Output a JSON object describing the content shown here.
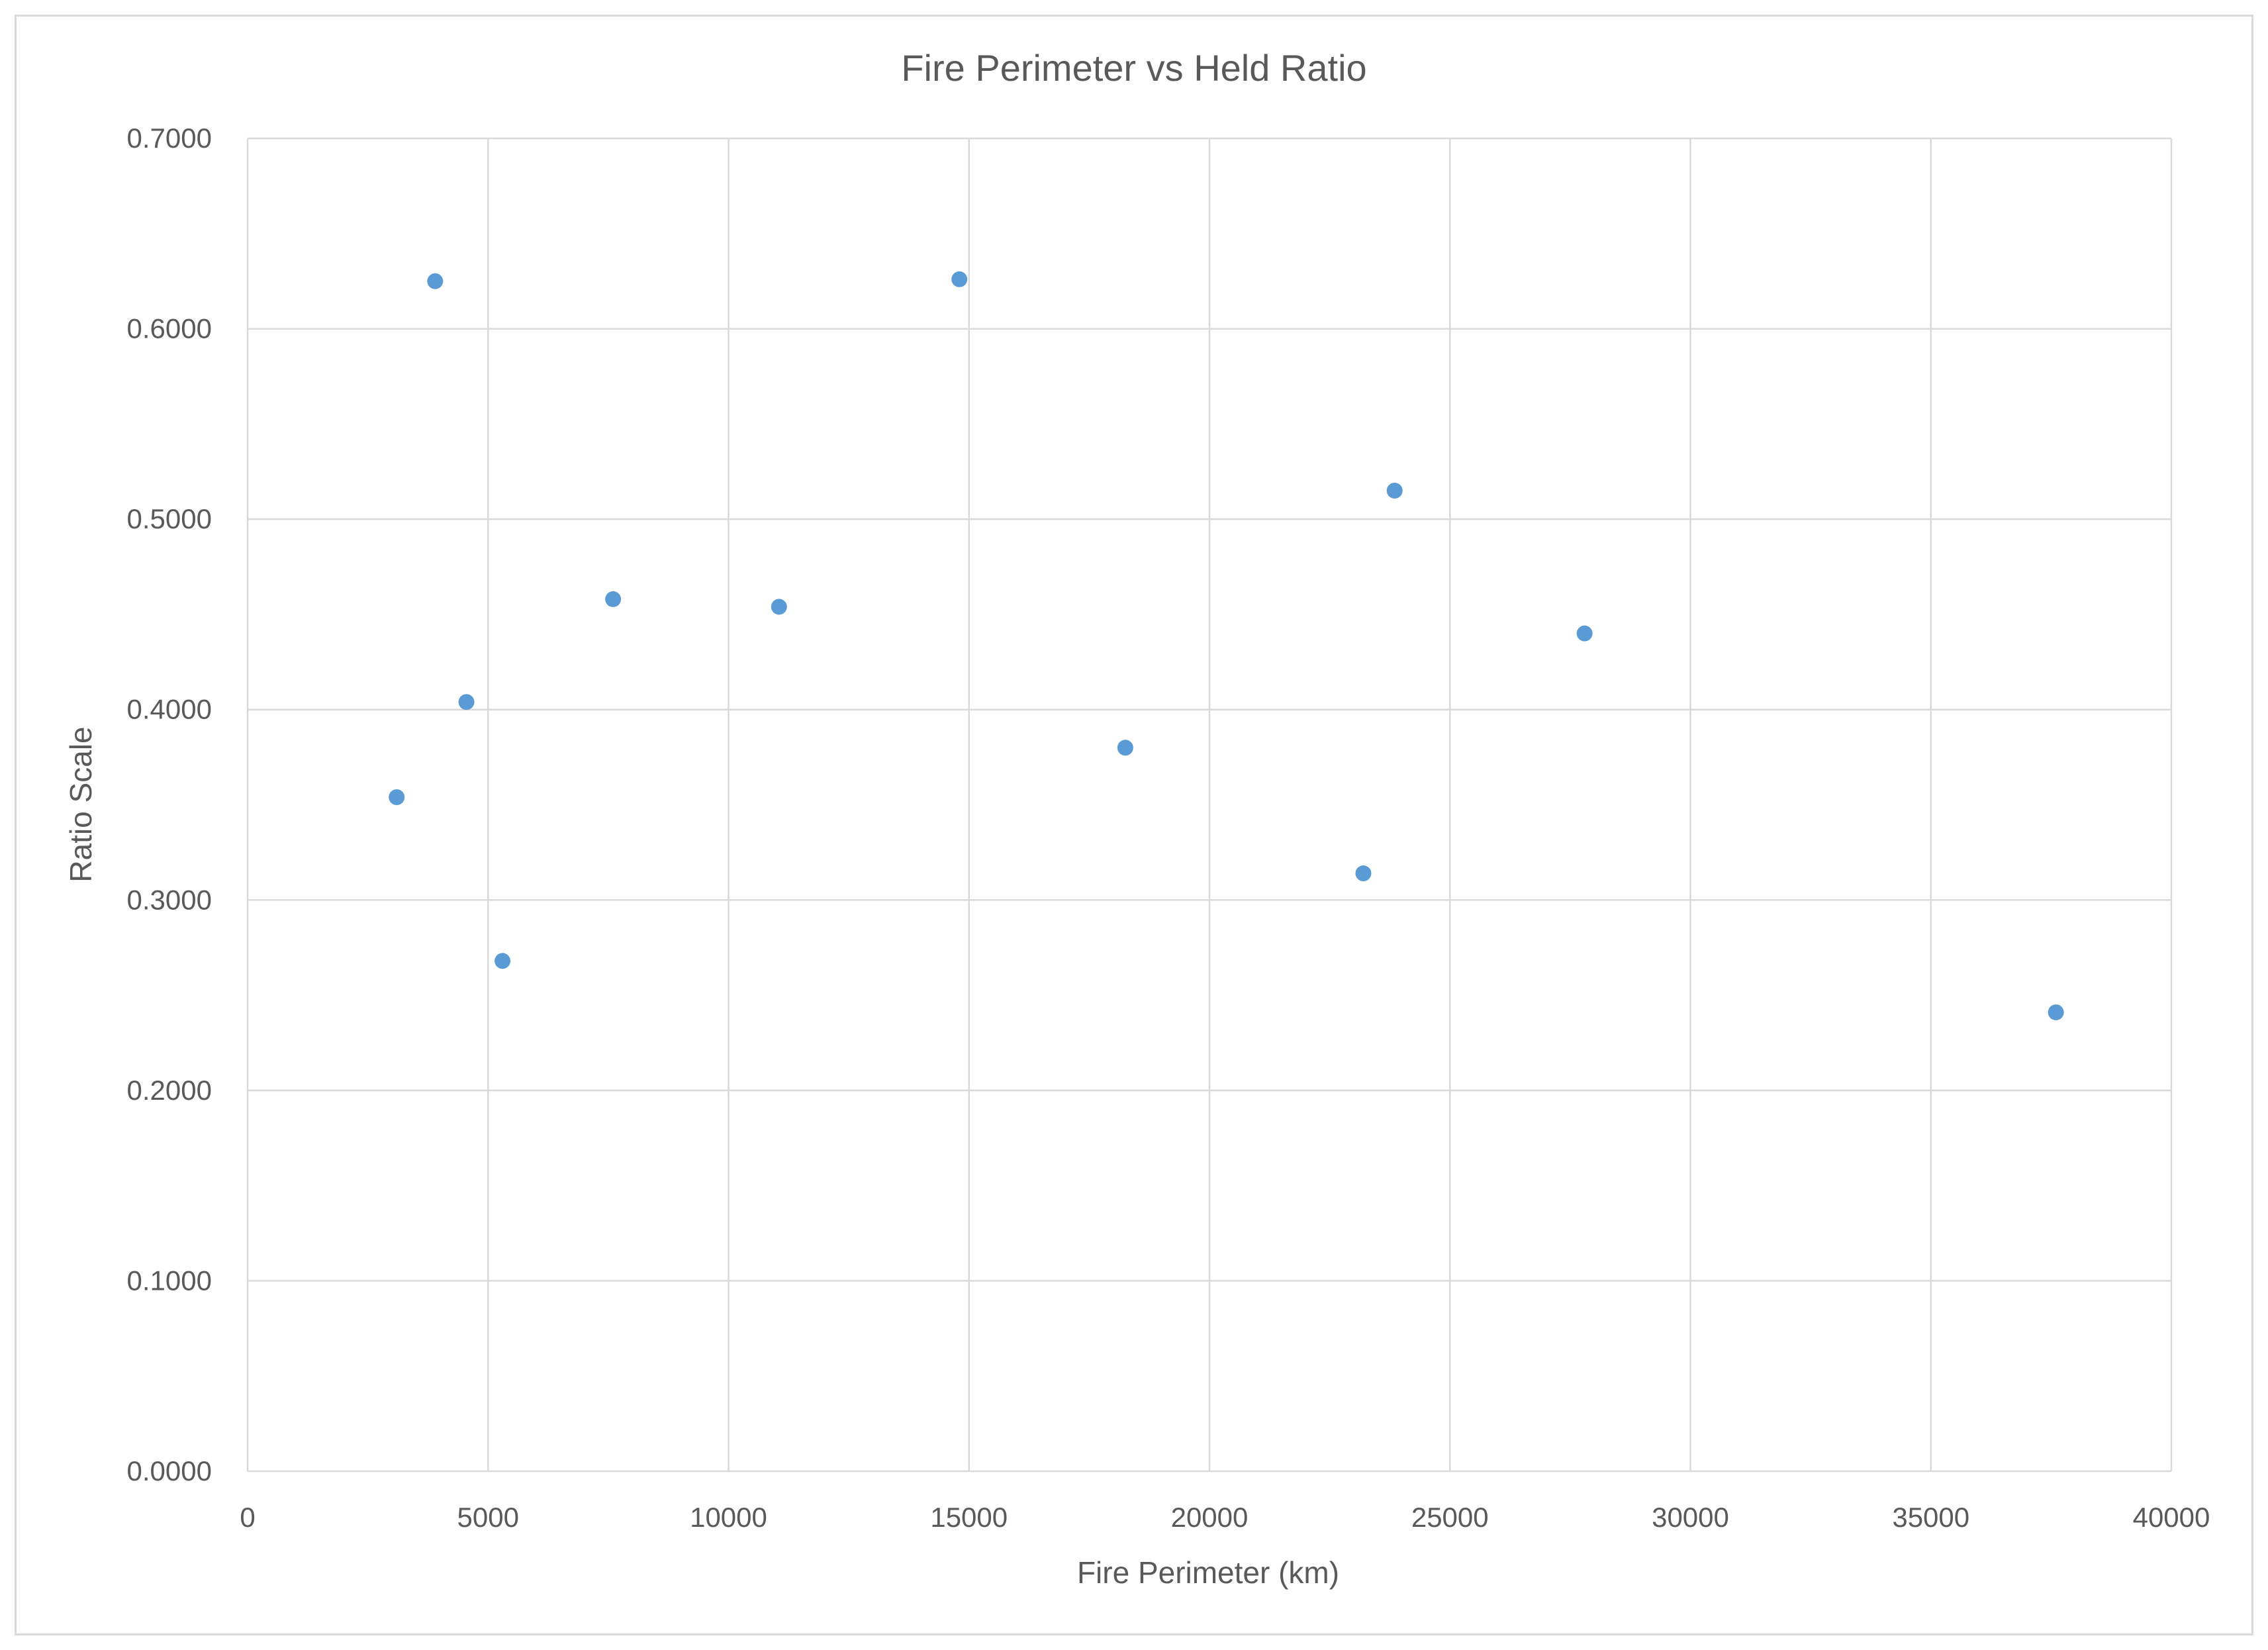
{
  "chart_data": {
    "type": "scatter",
    "title": "Fire Perimeter vs Held Ratio",
    "xlabel": "Fire Perimeter (km)",
    "ylabel": "Ratio Scale",
    "xlim": [
      0,
      40000
    ],
    "ylim": [
      0,
      0.7
    ],
    "x_ticks": [
      "0",
      "5000",
      "10000",
      "15000",
      "20000",
      "25000",
      "30000",
      "35000",
      "40000"
    ],
    "y_ticks": [
      "0.0000",
      "0.1000",
      "0.2000",
      "0.3000",
      "0.4000",
      "0.5000",
      "0.6000",
      "0.7000"
    ],
    "grid": true,
    "legend": "none",
    "marker_color": "#5b9bd5",
    "series": [
      {
        "points": [
          {
            "x": 3100,
            "y": 0.354
          },
          {
            "x": 3900,
            "y": 0.625
          },
          {
            "x": 4550,
            "y": 0.404
          },
          {
            "x": 5300,
            "y": 0.268
          },
          {
            "x": 7600,
            "y": 0.458
          },
          {
            "x": 11050,
            "y": 0.454
          },
          {
            "x": 14800,
            "y": 0.626
          },
          {
            "x": 18250,
            "y": 0.38
          },
          {
            "x": 23200,
            "y": 0.314
          },
          {
            "x": 23850,
            "y": 0.515
          },
          {
            "x": 27800,
            "y": 0.44
          },
          {
            "x": 37600,
            "y": 0.241
          }
        ]
      }
    ]
  }
}
